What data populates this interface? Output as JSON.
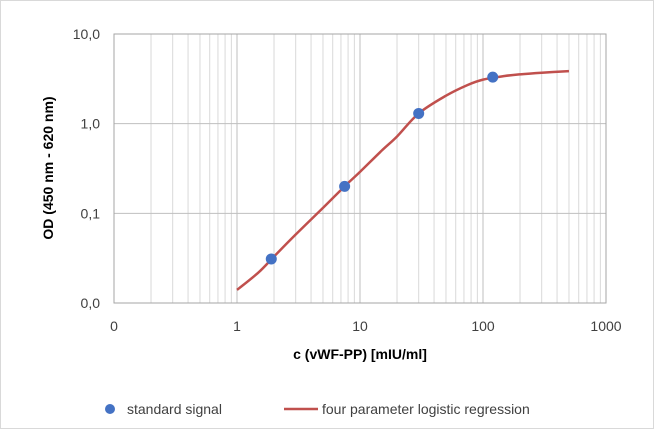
{
  "chart_data": {
    "type": "scatter",
    "xlabel": "c (vWF-PP) [mIU/ml]",
    "ylabel": "OD (450 nm - 620 nm)",
    "x_scale": "log",
    "y_scale": "log",
    "xlim": [
      0.1,
      1000
    ],
    "ylim": [
      0.01,
      10
    ],
    "x_tick_values": [
      0.1,
      1,
      10,
      100,
      1000
    ],
    "x_tick_labels": [
      "0",
      "1",
      "10",
      "100",
      "1000"
    ],
    "y_tick_values": [
      0.01,
      0.1,
      1,
      10
    ],
    "y_tick_labels": [
      "0,0",
      "0,1",
      "1,0",
      "10,0"
    ],
    "grid": true,
    "legend_position": "bottom",
    "series": [
      {
        "name": "standard signal",
        "kind": "scatter",
        "color": "#4472c4",
        "x": [
          1.9,
          7.5,
          30,
          120
        ],
        "y": [
          0.031,
          0.2,
          1.3,
          3.3
        ]
      },
      {
        "name": "four parameter logistic regression",
        "kind": "line",
        "color": "#c0504d",
        "x": [
          1,
          1.5,
          2,
          3,
          5,
          7.5,
          10,
          15,
          20,
          30,
          50,
          75,
          100,
          150,
          200,
          300,
          500
        ],
        "y": [
          0.014,
          0.022,
          0.033,
          0.058,
          0.115,
          0.2,
          0.29,
          0.5,
          0.72,
          1.3,
          2.05,
          2.7,
          3.1,
          3.4,
          3.55,
          3.7,
          3.85
        ]
      }
    ]
  }
}
